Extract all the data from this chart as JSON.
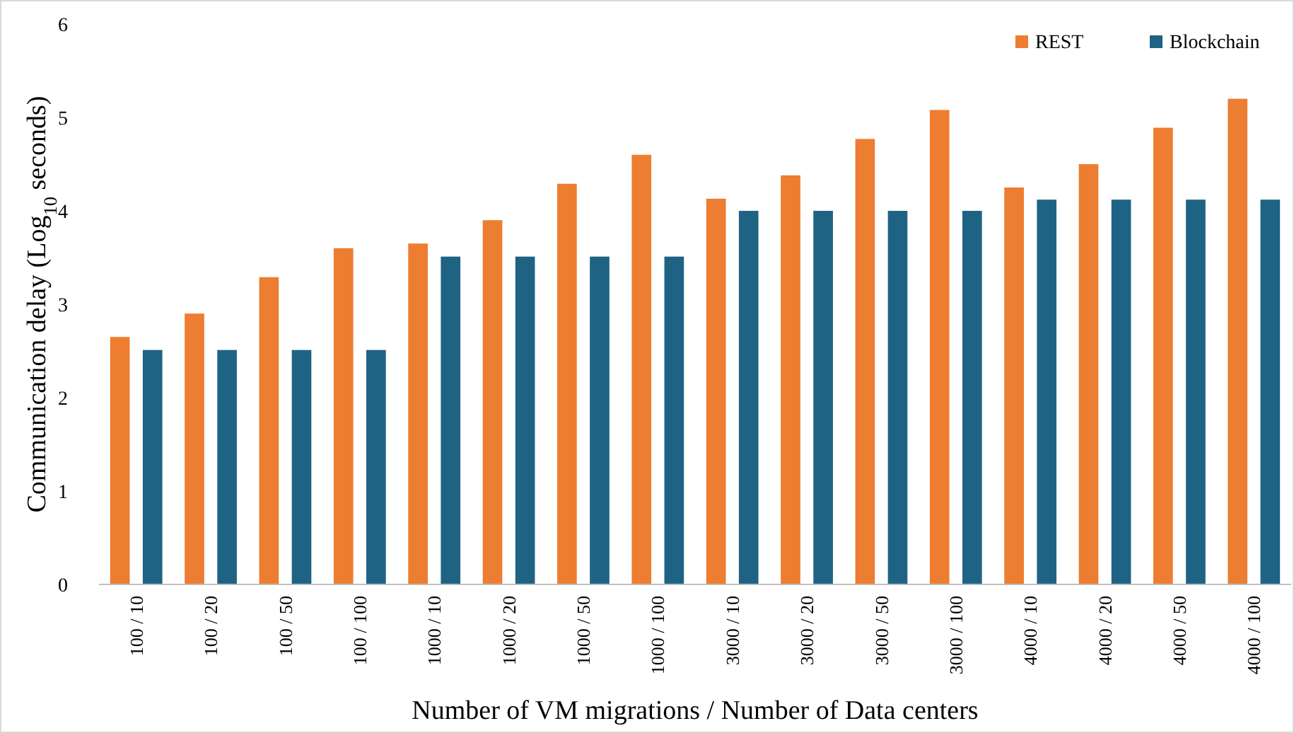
{
  "chart_data": {
    "type": "bar",
    "xlabel": "Number of VM migrations / Number of Data centers",
    "ylabel": "Communication delay (Log$_{10}$ seconds)",
    "categories": [
      "100 / 10",
      "100 / 20",
      "100 / 50",
      "100 / 100",
      "1000 / 10",
      "1000 / 20",
      "1000 / 50",
      "1000 / 100",
      "3000 / 10",
      "3000 / 20",
      "3000 / 50",
      "3000 / 100",
      "4000 / 10",
      "4000 / 20",
      "4000 / 50",
      "4000 / 100"
    ],
    "series": [
      {
        "name": "REST",
        "color": "#ed7d31",
        "values": [
          2.65,
          2.9,
          3.29,
          3.6,
          3.65,
          3.9,
          4.29,
          4.6,
          4.13,
          4.38,
          4.77,
          5.08,
          4.25,
          4.5,
          4.89,
          5.2
        ]
      },
      {
        "name": "Blockchain",
        "color": "#1f6384",
        "values": [
          2.51,
          2.51,
          2.51,
          2.51,
          3.51,
          3.51,
          3.51,
          3.51,
          4.0,
          4.0,
          4.0,
          4.0,
          4.12,
          4.12,
          4.12,
          4.12
        ]
      }
    ],
    "ylim": [
      0,
      6
    ],
    "yticks": [
      0,
      1,
      2,
      3,
      4,
      5,
      6
    ],
    "legend": "top right"
  }
}
